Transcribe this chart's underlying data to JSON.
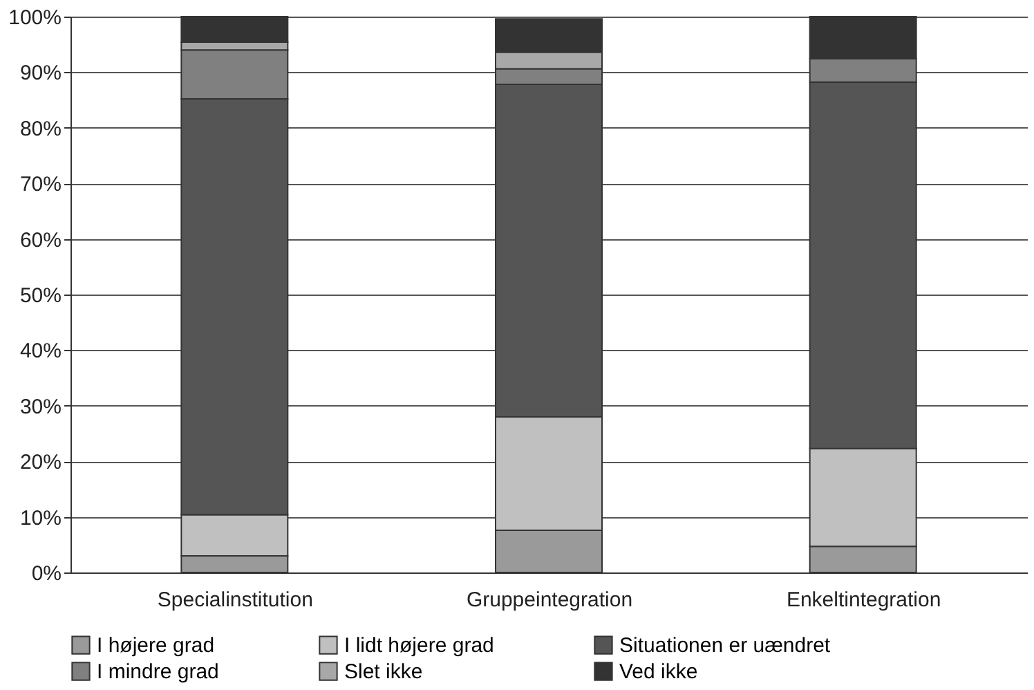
{
  "chart_data": {
    "type": "bar",
    "stacked": true,
    "categories": [
      "Specialinstitution",
      "Gruppeintegration",
      "Enkeltintegration"
    ],
    "series": [
      {
        "name": "I højere grad",
        "color": "#9a9a9a",
        "values": [
          3,
          7.6,
          4.7
        ]
      },
      {
        "name": "I lidt højere grad",
        "color": "#c0c0c0",
        "values": [
          7.4,
          20.4,
          17.6
        ]
      },
      {
        "name": "Situationen er uændret",
        "color": "#555555",
        "values": [
          74.8,
          59.8,
          65.9
        ]
      },
      {
        "name": "I mindre grad",
        "color": "#808080",
        "values": [
          8.8,
          2.8,
          4.2
        ]
      },
      {
        "name": "Slet ikke",
        "color": "#a8a8a8",
        "values": [
          1.4,
          3.0,
          0
        ]
      },
      {
        "name": "Ved ikke",
        "color": "#333333",
        "values": [
          4.6,
          6.0,
          7.6
        ]
      }
    ],
    "ylim": [
      0,
      100
    ],
    "yticks": [
      {
        "value": 0,
        "label": "0%"
      },
      {
        "value": 10,
        "label": "10%"
      },
      {
        "value": 20,
        "label": "20%"
      },
      {
        "value": 30,
        "label": "30%"
      },
      {
        "value": 40,
        "label": "40%"
      },
      {
        "value": 50,
        "label": "50%"
      },
      {
        "value": 60,
        "label": "60%"
      },
      {
        "value": 70,
        "label": "70%"
      },
      {
        "value": 80,
        "label": "80%"
      },
      {
        "value": 90,
        "label": "90%"
      },
      {
        "value": 100,
        "label": "100%"
      }
    ],
    "grid": "y",
    "legend": "bottom"
  }
}
